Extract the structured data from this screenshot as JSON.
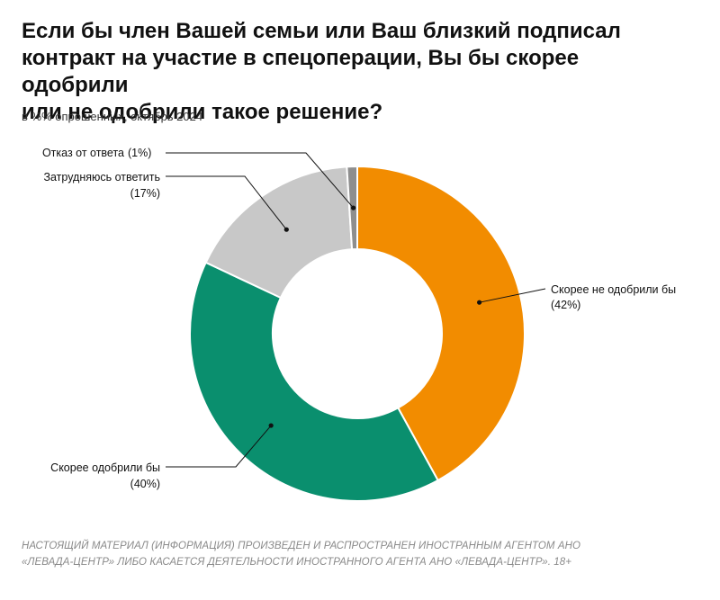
{
  "title_lines": [
    "Если бы член Вашей семьи или Ваш близкий подписал",
    "контракт на участие в спецоперации, Вы бы скорее одобрили",
    "или не одобрили такое решение?"
  ],
  "subtitle": "в %% опрошенных, октябрь 2024",
  "chart_data": {
    "type": "pie",
    "donut": true,
    "title": "Если бы член Вашей семьи или Ваш близкий подписал контракт на участие в спецоперации, Вы бы скорее одобрили или не одобрили такое решение?",
    "subtitle": "в %% опрошенных, октябрь 2024",
    "categories": [
      "Скорее не одобрили бы",
      "Скорее одобрили бы",
      "Затрудняюсь ответить",
      "Отказ от ответа"
    ],
    "values": [
      42,
      40,
      17,
      1
    ],
    "value_labels": [
      "(42%)",
      "(40%)",
      "(17%)",
      "(1%)"
    ],
    "colors": [
      "#F28C00",
      "#0A8F6E",
      "#C8C8C8",
      "#8E8E8E"
    ]
  },
  "footer_lines": [
    "НАСТОЯЩИЙ МАТЕРИАЛ (ИНФОРМАЦИЯ) ПРОИЗВЕДЕН И РАСПРОСТРАНЕН ИНОСТРАННЫМ АГЕНТОМ АНО",
    "«ЛЕВАДА-ЦЕНТР» ЛИБО КАСАЕТСЯ ДЕЯТЕЛЬНОСТИ ИНОСТРАННОГО АГЕНТА АНО «ЛЕВАДА-ЦЕНТР». 18+"
  ]
}
